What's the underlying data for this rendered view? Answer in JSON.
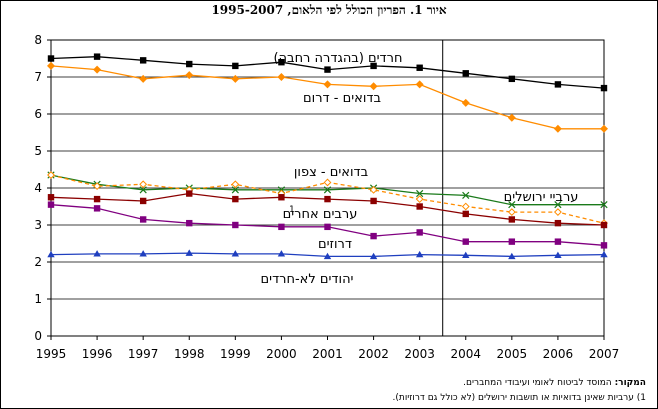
{
  "chart_data": {
    "type": "line",
    "title": "איור 1. הפריון הכולל לפי הלאום, 1995-2007",
    "x": [
      1995,
      1996,
      1997,
      1998,
      1999,
      2000,
      2001,
      2002,
      2003,
      2004,
      2005,
      2006,
      2007
    ],
    "ylim": [
      0,
      8
    ],
    "yticks": [
      0,
      1,
      2,
      3,
      4,
      5,
      6,
      7,
      8
    ],
    "xlabel": "",
    "ylabel": "",
    "grid": "horizontal",
    "legend": "inline labels",
    "series": [
      {
        "name": "חרדים (בהגדרה רחבה)",
        "color": "#000000",
        "marker": "square",
        "dashed": false,
        "values": [
          7.5,
          7.55,
          7.45,
          7.35,
          7.3,
          7.4,
          7.2,
          7.3,
          7.25,
          7.1,
          6.95,
          6.8,
          6.7
        ]
      },
      {
        "name": "בדואים - דרום",
        "color": "#ff8c00",
        "marker": "diamond",
        "dashed": false,
        "values": [
          7.3,
          7.2,
          6.95,
          7.05,
          6.95,
          7.0,
          6.8,
          6.75,
          6.8,
          6.3,
          5.9,
          5.6,
          5.6
        ]
      },
      {
        "name": "ערביי ירושלים",
        "color": "#1a7a1a",
        "marker": "cross",
        "dashed": false,
        "values": [
          4.35,
          4.1,
          3.95,
          4.0,
          3.95,
          3.95,
          3.95,
          4.0,
          3.85,
          3.8,
          3.55,
          3.55,
          3.55
        ]
      },
      {
        "name": "בדואים - צפון",
        "color": "#ff8c00",
        "marker": "diamond-open",
        "dashed": true,
        "values": [
          4.35,
          4.05,
          4.1,
          3.95,
          4.1,
          3.85,
          4.15,
          3.95,
          3.7,
          3.5,
          3.35,
          3.35,
          3.05
        ]
      },
      {
        "name": "ערבים אחרים",
        "color": "#8b0000",
        "marker": "square",
        "dashed": false,
        "values": [
          3.75,
          3.7,
          3.65,
          3.85,
          3.7,
          3.75,
          3.7,
          3.65,
          3.5,
          3.3,
          3.15,
          3.05,
          3.0
        ]
      },
      {
        "name": "דרוזים",
        "color": "#800080",
        "marker": "square",
        "dashed": false,
        "values": [
          3.55,
          3.45,
          3.15,
          3.05,
          3.0,
          2.95,
          2.95,
          2.7,
          2.8,
          2.55,
          2.55,
          2.55,
          2.45
        ]
      },
      {
        "name": "יהודים לא-חרדים",
        "color": "#1f3fbf",
        "marker": "triangle",
        "dashed": false,
        "values": [
          2.2,
          2.22,
          2.22,
          2.24,
          2.22,
          2.22,
          2.15,
          2.15,
          2.2,
          2.18,
          2.15,
          2.18,
          2.2
        ]
      }
    ],
    "annotations": [
      {
        "series_index": 0,
        "text": "חרדים (בהגדרה רחבה)"
      },
      {
        "series_index": 1,
        "text": "בדואים - דרום"
      },
      {
        "series_index": 3,
        "text": "בדואים - צפון"
      },
      {
        "series_index": 2,
        "text": "ערביי ירושלים"
      },
      {
        "series_index": 4,
        "text": "ערבים אחרים",
        "superscript": "1"
      },
      {
        "series_index": 5,
        "text": "דרוזים"
      },
      {
        "series_index": 6,
        "text": "יהודים לא-חרדים"
      }
    ],
    "vertical_marker_between": [
      2003,
      2004
    ]
  },
  "notes": {
    "source_label": "המקור:",
    "source_text": " המוסד לביטוח לאומי ועיבודי המחברים.",
    "footnote": "1) ערביות שאינן בדואיות או תושבות ירושלים (לא כולל גם דרוזיות)."
  }
}
